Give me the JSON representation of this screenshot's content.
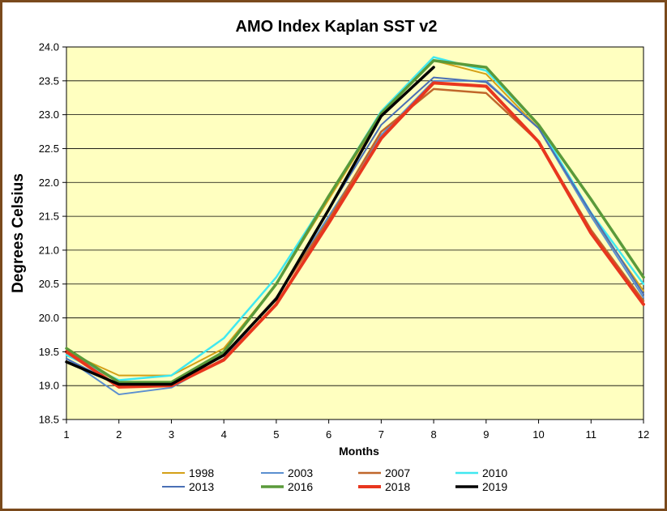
{
  "chart_data": {
    "type": "line",
    "title": "AMO Index Kaplan SST v2",
    "xlabel": "Months",
    "ylabel": "Degrees Celsius",
    "x": [
      1,
      2,
      3,
      4,
      5,
      6,
      7,
      8,
      9,
      10,
      11,
      12
    ],
    "xlim": [
      1,
      12
    ],
    "ylim": [
      18.5,
      24.0
    ],
    "yticks": [
      "18.5",
      "19.0",
      "19.5",
      "20.0",
      "20.5",
      "21.0",
      "21.5",
      "22.0",
      "22.5",
      "23.0",
      "23.5",
      "24.0"
    ],
    "xticks": [
      "1",
      "2",
      "3",
      "4",
      "5",
      "6",
      "7",
      "8",
      "9",
      "10",
      "11",
      "12"
    ],
    "grid": true,
    "legend_position": "bottom",
    "plot_background": "#ffffc0",
    "series": [
      {
        "name": "1998",
        "color": "#d4a017",
        "width": 2,
        "values": [
          19.5,
          19.15,
          19.15,
          19.55,
          20.5,
          21.75,
          23.0,
          23.8,
          23.6,
          22.8,
          21.5,
          20.4
        ]
      },
      {
        "name": "2003",
        "color": "#5b8fd0",
        "width": 2,
        "values": [
          19.4,
          18.87,
          18.97,
          19.4,
          20.3,
          21.5,
          22.7,
          23.5,
          23.5,
          22.8,
          21.5,
          20.3
        ]
      },
      {
        "name": "2007",
        "color": "#c0672b",
        "width": 2.5,
        "values": [
          19.5,
          19.05,
          19.05,
          19.45,
          20.3,
          21.45,
          22.75,
          23.38,
          23.32,
          22.6,
          21.3,
          20.25
        ]
      },
      {
        "name": "2010",
        "color": "#40e8f0",
        "width": 2.5,
        "values": [
          19.45,
          19.08,
          19.15,
          19.7,
          20.6,
          21.8,
          23.05,
          23.85,
          23.65,
          22.85,
          21.55,
          20.5
        ]
      },
      {
        "name": "2013",
        "color": "#4a6fb5",
        "width": 2,
        "values": [
          19.4,
          19.0,
          19.0,
          19.45,
          20.3,
          21.6,
          22.85,
          23.55,
          23.48,
          22.8,
          21.55,
          20.35
        ]
      },
      {
        "name": "2016",
        "color": "#5a9a3a",
        "width": 3.5,
        "values": [
          19.55,
          19.05,
          19.05,
          19.5,
          20.5,
          21.8,
          23.02,
          23.8,
          23.7,
          22.85,
          21.75,
          20.6
        ]
      },
      {
        "name": "2018",
        "color": "#e8361e",
        "width": 4,
        "values": [
          19.5,
          18.98,
          19.0,
          19.38,
          20.2,
          21.4,
          22.65,
          23.47,
          23.42,
          22.6,
          21.25,
          20.2
        ]
      },
      {
        "name": "2019",
        "color": "#000000",
        "width": 3.5,
        "values": [
          19.35,
          19.02,
          19.02,
          19.45,
          20.28,
          21.6,
          22.98,
          23.7,
          null,
          null,
          null,
          null
        ]
      }
    ]
  }
}
